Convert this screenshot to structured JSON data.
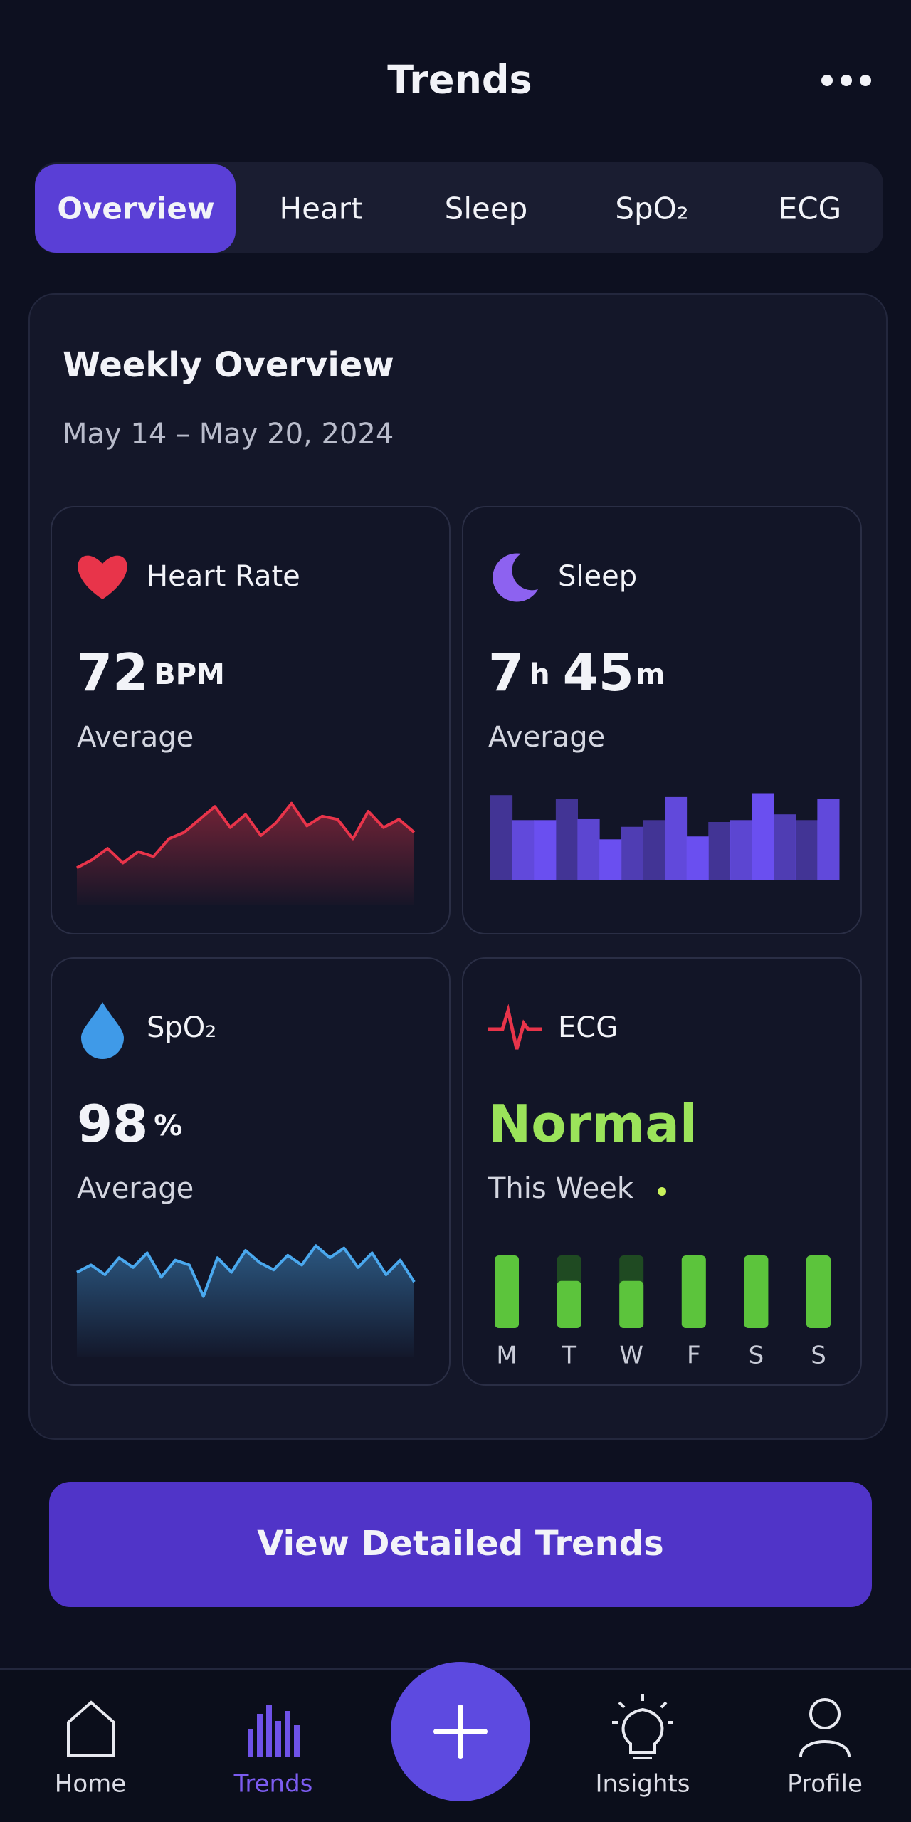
{
  "header": {
    "title": "Trends"
  },
  "tabs": {
    "items": [
      "Overview",
      "Heart",
      "Sleep",
      "SpO₂",
      "ECG"
    ],
    "active": 0
  },
  "overview": {
    "title": "Weekly Overview",
    "date_range": "May 14 – May 20, 2024"
  },
  "cards": [
    {
      "title": "Heart Rate",
      "value": "72",
      "unit": "BPM",
      "caption": "Average",
      "chart": {
        "type": "line",
        "color": "#e8344a",
        "ylim": [
          30,
          90
        ],
        "values": [
          40,
          45,
          52,
          43,
          50,
          47,
          58,
          62,
          70,
          78,
          65,
          73,
          60,
          68,
          80,
          66,
          72,
          70,
          58,
          75,
          65,
          70,
          62
        ]
      }
    },
    {
      "title": "Sleep",
      "value": "7",
      "unit": "h",
      "value2": "45",
      "unit2": "m",
      "caption": "Average",
      "chart": {
        "type": "bar",
        "color": "#6a4ff0",
        "ylim": [
          0,
          10
        ],
        "values": [
          8.8,
          6.2,
          6.2,
          8.4,
          6.3,
          4.2,
          5.5,
          6.2,
          8.6,
          4.5,
          6.0,
          6.2,
          9.0,
          6.8,
          6.2,
          8.4
        ]
      }
    },
    {
      "title": "SpO₂",
      "value": "98",
      "unit": "%",
      "caption": "Average",
      "chart": {
        "type": "line",
        "color": "#4aa8ee",
        "ylim": [
          95,
          99
        ],
        "values": [
          97.6,
          97.9,
          97.5,
          98.2,
          97.8,
          98.4,
          97.4,
          98.1,
          97.9,
          96.6,
          98.2,
          97.6,
          98.5,
          98.0,
          97.7,
          98.3,
          97.9,
          98.7,
          98.2,
          98.6,
          97.8,
          98.4,
          97.5,
          98.1,
          97.2
        ]
      }
    },
    {
      "title": "ECG",
      "value": "Normal",
      "caption": "This Week",
      "chart": {
        "type": "days",
        "color": "#5cc43c",
        "ylim": [
          0,
          100
        ],
        "categories": [
          "M",
          "T",
          "W",
          "F",
          "S",
          "S"
        ],
        "values": [
          100,
          65,
          65,
          100,
          100,
          100
        ]
      }
    }
  ],
  "button": {
    "label": "View Detailed Trends"
  },
  "nav": {
    "items": [
      "Home",
      "Trends",
      "Insights",
      "Profile"
    ],
    "active": 1
  }
}
